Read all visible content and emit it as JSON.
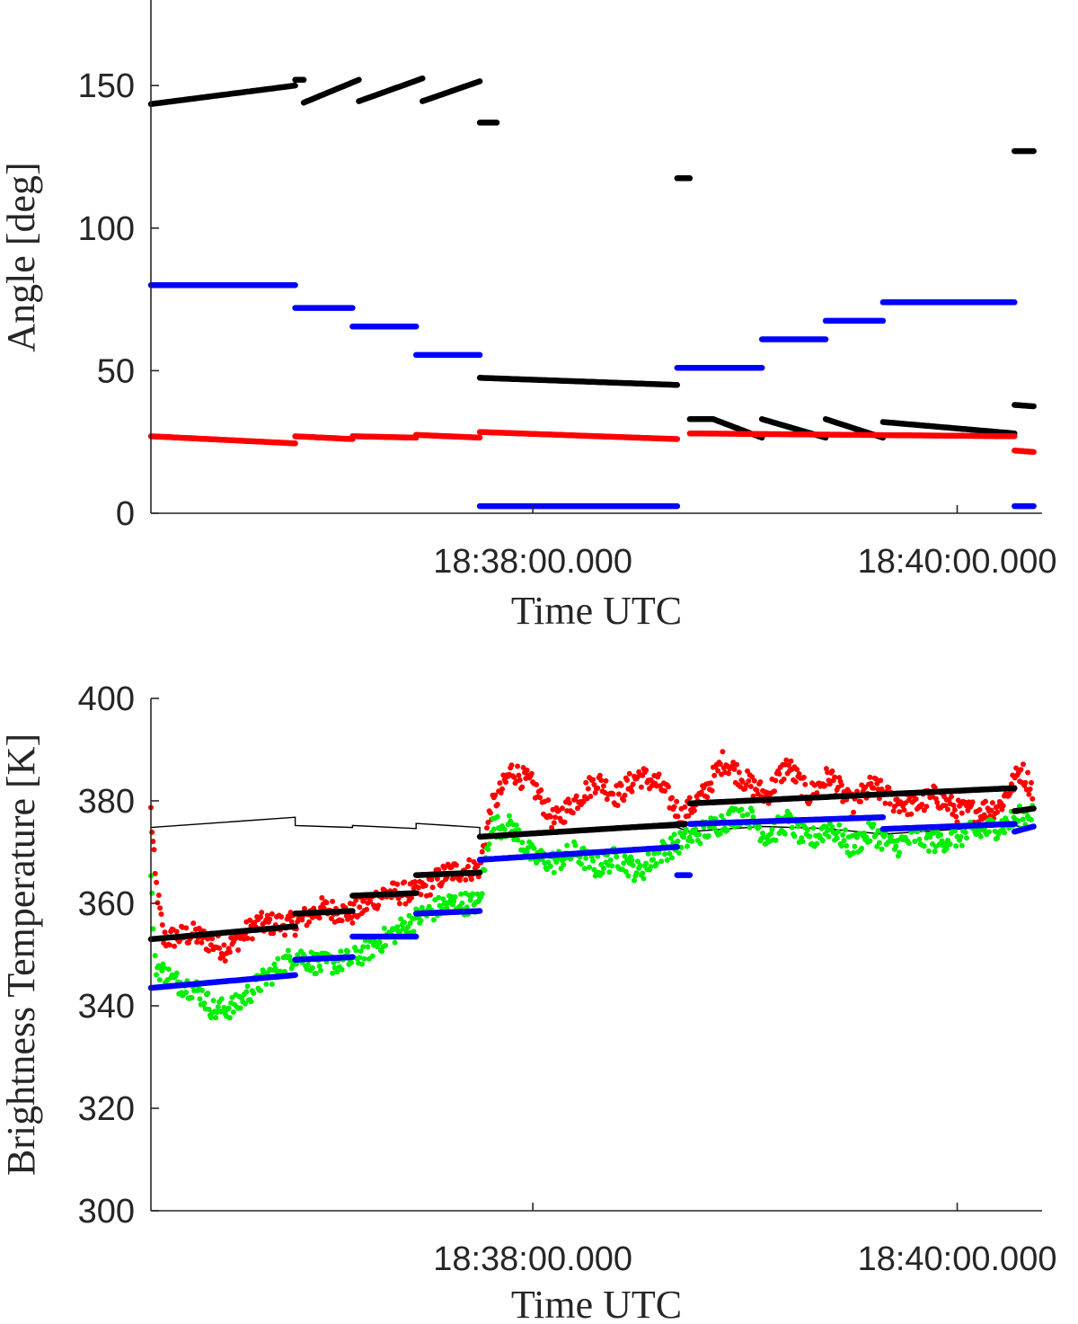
{
  "chart_data": [
    {
      "type": "scatter",
      "xlabel": "Time UTC",
      "ylabel": "Angle [deg]",
      "ylim": [
        0,
        180
      ],
      "xlim_minutes": [
        36.2,
        40.4
      ],
      "x_ticks": [
        {
          "value": 38.0,
          "label": "18:38:00.000"
        },
        {
          "value": 40.0,
          "label": "18:40:00.000"
        }
      ],
      "y_ticks": [
        {
          "value": 0,
          "label": "0"
        },
        {
          "value": 50,
          "label": "50"
        },
        {
          "value": 100,
          "label": "100"
        },
        {
          "value": 150,
          "label": "150"
        }
      ],
      "grid": false,
      "colors": {
        "black": "#000000",
        "blue": "#0000ff",
        "red": "#ff0000"
      },
      "series": [
        {
          "color": "black",
          "marker": "dot",
          "segments": [
            [
              36.2,
              143.5,
              36.88,
              150
            ],
            [
              36.88,
              152,
              36.92,
              152
            ],
            [
              36.92,
              144,
              37.18,
              152
            ],
            [
              37.18,
              144.5,
              37.48,
              152.5
            ],
            [
              37.48,
              144.5,
              37.75,
              151.5
            ],
            [
              37.75,
              137,
              37.83,
              137
            ],
            [
              37.75,
              47.5,
              38.68,
              45
            ],
            [
              38.68,
              117.5,
              38.74,
              117.5
            ],
            [
              38.74,
              33,
              38.85,
              33
            ],
            [
              38.85,
              33,
              39.08,
              26.5
            ],
            [
              39.08,
              33,
              39.38,
              26.5
            ],
            [
              39.38,
              33,
              39.65,
              26.5
            ],
            [
              39.65,
              32,
              40.27,
              28
            ],
            [
              40.27,
              127,
              40.36,
              127
            ],
            [
              40.27,
              38,
              40.36,
              37.5
            ]
          ]
        },
        {
          "color": "blue",
          "marker": "dot",
          "segments": [
            [
              36.2,
              80,
              36.88,
              80
            ],
            [
              36.88,
              72,
              37.15,
              72
            ],
            [
              37.15,
              65.5,
              37.45,
              65.5
            ],
            [
              37.45,
              55.5,
              37.75,
              55.5
            ],
            [
              37.75,
              2.5,
              38.68,
              2.5
            ],
            [
              38.68,
              51,
              39.08,
              51
            ],
            [
              39.08,
              61,
              39.38,
              61
            ],
            [
              39.38,
              67.5,
              39.65,
              67.5
            ],
            [
              39.65,
              74,
              40.27,
              74
            ],
            [
              40.27,
              2.5,
              40.36,
              2.5
            ]
          ]
        },
        {
          "color": "red",
          "marker": "dot",
          "segments": [
            [
              36.2,
              27,
              36.88,
              24.5
            ],
            [
              36.88,
              27,
              37.15,
              26
            ],
            [
              37.15,
              27,
              37.45,
              26.5
            ],
            [
              37.45,
              27.5,
              37.75,
              26.5
            ],
            [
              37.75,
              28.5,
              38.68,
              26
            ],
            [
              38.74,
              28,
              40.27,
              27
            ],
            [
              40.27,
              22,
              40.36,
              21.5
            ]
          ]
        }
      ]
    },
    {
      "type": "scatter",
      "xlabel": "Time UTC",
      "ylabel": "Brightness Temperature [K]",
      "ylim": [
        300,
        400
      ],
      "xlim_minutes": [
        36.2,
        40.4
      ],
      "x_ticks": [
        {
          "value": 38.0,
          "label": "18:38:00.000"
        },
        {
          "value": 40.0,
          "label": "18:40:00.000"
        }
      ],
      "y_ticks": [
        {
          "value": 300,
          "label": "300"
        },
        {
          "value": 320,
          "label": "320"
        },
        {
          "value": 340,
          "label": "340"
        },
        {
          "value": 360,
          "label": "360"
        },
        {
          "value": 380,
          "label": "380"
        },
        {
          "value": 400,
          "label": "400"
        }
      ],
      "grid": false,
      "colors": {
        "black": "#000000",
        "blue": "#0000ff",
        "red": "#ff0000",
        "green": "#00ee00"
      },
      "thin_line": [
        [
          36.2,
          374.8
        ],
        [
          36.88,
          376.8
        ],
        [
          36.88,
          375.2
        ],
        [
          37.15,
          374.8
        ],
        [
          37.15,
          375.2
        ],
        [
          37.45,
          374.6
        ],
        [
          37.45,
          375.6
        ],
        [
          37.75,
          374.8
        ],
        [
          37.75,
          373.2
        ],
        [
          38.68,
          374.8
        ],
        [
          38.74,
          374.0
        ],
        [
          39.08,
          375.0
        ],
        [
          39.38,
          374.6
        ],
        [
          39.65,
          373.5
        ],
        [
          40.27,
          375.2
        ],
        [
          40.36,
          374.5
        ]
      ],
      "series": [
        {
          "color": "black",
          "marker": "dot",
          "segments": [
            [
              36.2,
              353,
              36.88,
              355.5
            ],
            [
              36.88,
              358,
              37.15,
              358.5
            ],
            [
              37.15,
              361.5,
              37.45,
              362
            ],
            [
              37.45,
              365.5,
              37.75,
              366
            ],
            [
              37.75,
              373,
              38.72,
              375.5
            ],
            [
              38.74,
              379.5,
              40.27,
              382.5
            ],
            [
              40.27,
              378,
              40.36,
              378.5
            ]
          ]
        },
        {
          "color": "blue",
          "marker": "dot",
          "segments": [
            [
              36.2,
              343.5,
              36.88,
              346
            ],
            [
              36.88,
              349,
              37.15,
              349.5
            ],
            [
              37.15,
              353.5,
              37.45,
              353.5
            ],
            [
              37.45,
              358,
              37.75,
              358.5
            ],
            [
              37.75,
              368.5,
              38.68,
              371
            ],
            [
              38.68,
              365.5,
              38.74,
              365.5
            ],
            [
              38.74,
              375.5,
              39.65,
              376.8
            ],
            [
              39.65,
              374.5,
              40.27,
              375.5
            ],
            [
              40.27,
              374,
              40.36,
              375
            ]
          ]
        },
        {
          "color": "red",
          "marker": "dot",
          "noisy": true,
          "trace": [
            [
              36.2,
              378
            ],
            [
              36.22,
              365
            ],
            [
              36.26,
              353
            ],
            [
              36.4,
              354
            ],
            [
              36.55,
              351
            ],
            [
              36.7,
              356
            ],
            [
              36.88,
              356
            ],
            [
              37.0,
              359
            ],
            [
              37.15,
              358
            ],
            [
              37.3,
              362
            ],
            [
              37.45,
              362
            ],
            [
              37.6,
              366
            ],
            [
              37.75,
              367
            ],
            [
              37.8,
              378
            ],
            [
              37.9,
              386
            ],
            [
              38.0,
              383
            ],
            [
              38.1,
              376
            ],
            [
              38.2,
              380
            ],
            [
              38.3,
              384
            ],
            [
              38.4,
              381
            ],
            [
              38.5,
              385
            ],
            [
              38.6,
              383
            ],
            [
              38.7,
              377
            ],
            [
              38.8,
              381
            ],
            [
              38.9,
              388
            ],
            [
              39.0,
              384
            ],
            [
              39.1,
              381
            ],
            [
              39.2,
              387
            ],
            [
              39.3,
              381
            ],
            [
              39.4,
              385
            ],
            [
              39.5,
              379
            ],
            [
              39.6,
              383
            ],
            [
              39.7,
              380
            ],
            [
              39.8,
              379
            ],
            [
              39.9,
              381
            ],
            [
              40.0,
              378
            ],
            [
              40.1,
              378
            ],
            [
              40.2,
              379
            ],
            [
              40.3,
              386
            ],
            [
              40.36,
              382
            ]
          ]
        },
        {
          "color": "green",
          "marker": "dot",
          "noisy": true,
          "trace": [
            [
              36.2,
              365
            ],
            [
              36.22,
              348
            ],
            [
              36.3,
              345
            ],
            [
              36.42,
              343
            ],
            [
              36.5,
              339
            ],
            [
              36.6,
              340
            ],
            [
              36.7,
              344
            ],
            [
              36.88,
              350
            ],
            [
              37.0,
              348
            ],
            [
              37.15,
              349
            ],
            [
              37.3,
              353
            ],
            [
              37.45,
              357
            ],
            [
              37.6,
              360
            ],
            [
              37.75,
              360
            ],
            [
              37.8,
              375
            ],
            [
              37.9,
              375
            ],
            [
              38.0,
              369
            ],
            [
              38.1,
              368
            ],
            [
              38.2,
              370
            ],
            [
              38.3,
              367
            ],
            [
              38.4,
              369
            ],
            [
              38.5,
              366
            ],
            [
              38.6,
              370
            ],
            [
              38.7,
              372
            ],
            [
              38.8,
              374
            ],
            [
              38.9,
              376
            ],
            [
              39.0,
              378
            ],
            [
              39.1,
              373
            ],
            [
              39.2,
              376
            ],
            [
              39.3,
              372
            ],
            [
              39.4,
              375
            ],
            [
              39.5,
              371
            ],
            [
              39.6,
              374
            ],
            [
              39.7,
              371
            ],
            [
              39.8,
              373
            ],
            [
              39.9,
              372
            ],
            [
              40.0,
              373
            ],
            [
              40.1,
              374
            ],
            [
              40.2,
              375
            ],
            [
              40.36,
              378
            ]
          ]
        }
      ]
    }
  ]
}
